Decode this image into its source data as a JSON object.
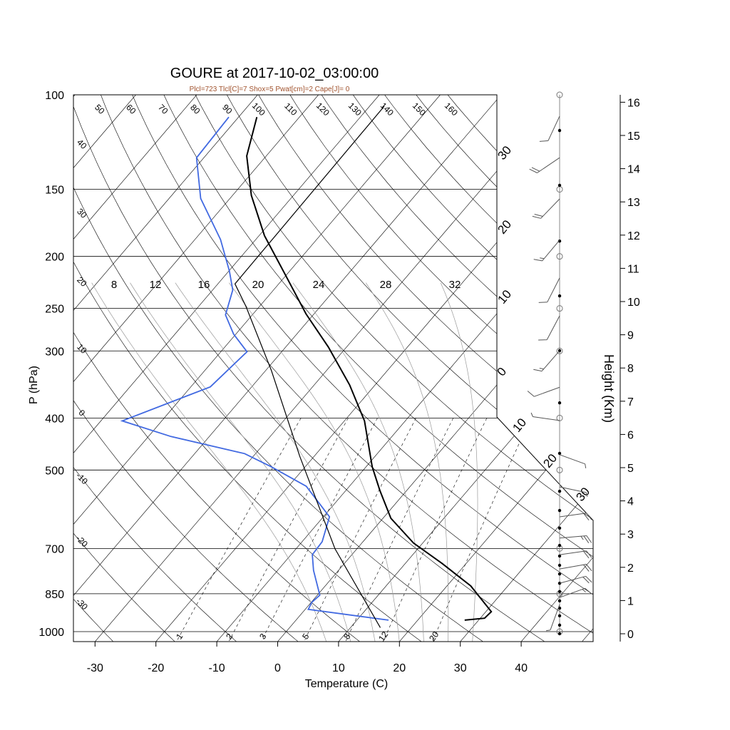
{
  "chart_data": {
    "type": "line",
    "subtype": "skew-T log-P",
    "title": "GOURE at 2017-10-02_03:00:00",
    "subtitle": "Plcl=723 Tlcl[C]=7 Shox=5 Pwat[cm]=2 Cape[J]= 0",
    "xlabel": "Temperature (C)",
    "ylabel": "P (hPa)",
    "y2label": "Height (Km)",
    "xlim": [
      -34,
      51
    ],
    "ylim": [
      1044,
      100
    ],
    "x_ticks": [
      "-30",
      "-20",
      "-10",
      "0",
      "10",
      "20",
      "30",
      "40"
    ],
    "pressure_ticks": [
      "100",
      "150",
      "200",
      "250",
      "300",
      "400",
      "500",
      "700",
      "850",
      "1000"
    ],
    "height_ticks": [
      "0",
      "1",
      "2",
      "3",
      "4",
      "5",
      "6",
      "7",
      "8",
      "9",
      "10",
      "11",
      "12",
      "13",
      "14",
      "15",
      "16"
    ],
    "isotherm_labels": [
      "30",
      "20",
      "10",
      "0",
      "10",
      "20",
      "30"
    ],
    "dry_adiabat_labels_top": [
      "50",
      "60",
      "70",
      "80",
      "90",
      "100",
      "110",
      "120",
      "130",
      "140",
      "150",
      "160"
    ],
    "dry_adiabat_labels_left": [
      "40",
      "30",
      "20",
      "10",
      "0",
      "-10",
      "-20",
      "-30"
    ],
    "moist_adiabat_labels": [
      "8",
      "12",
      "16",
      "20",
      "24",
      "28",
      "32"
    ],
    "mixing_ratio_labels": [
      "1",
      "2",
      "3",
      "5",
      "8",
      "12",
      "20"
    ],
    "colors": {
      "temperature": "#000000",
      "dewpoint": "#4169e1",
      "parcel": "#000000",
      "subtitle": "#a0522d",
      "grid": "#000000",
      "moist": "#9a9a9a"
    },
    "series": [
      {
        "name": "temperature",
        "pressure": [
          952,
          944,
          918,
          822,
          746,
          684,
          615,
          546,
          493,
          405,
          347,
          295,
          256,
          216,
          183,
          154,
          130,
          110
        ],
        "temp": [
          27.7,
          30.7,
          30.9,
          23.9,
          16.0,
          8.5,
          1.3,
          -4.4,
          -9.0,
          -16.7,
          -24.2,
          -33.0,
          -41.3,
          -50.3,
          -59.1,
          -66.9,
          -73.2,
          -77.0
        ]
      },
      {
        "name": "dewpoint",
        "pressure": [
          952,
          909,
          882,
          855,
          769,
          719,
          680,
          611,
          536,
          493,
          466,
          433,
          405,
          350,
          301,
          279,
          257,
          231,
          213,
          186,
          156,
          131,
          110
        ],
        "temp": [
          15.2,
          0.5,
          0.1,
          0.4,
          -4.1,
          -6.5,
          -6.7,
          -9.0,
          -17.1,
          -25.6,
          -31.8,
          -46.3,
          -56.5,
          -46.8,
          -45.7,
          -50.4,
          -54.4,
          -56.7,
          -59.9,
          -65.8,
          -74.8,
          -81.2,
          -81.6
        ]
      },
      {
        "name": "parcel",
        "pressure": [
          983,
          701,
          471,
          326,
          248,
          225,
          105
        ],
        "temp": [
          14.9,
          -3.6,
          -22.4,
          -39.1,
          -52.2,
          -57.2,
          -57.6
        ]
      }
    ],
    "mixing_ratio_lines": [
      1,
      2,
      3,
      5,
      8,
      12,
      20
    ],
    "moist_adiabats": [
      8,
      12,
      16,
      20,
      24,
      28,
      32
    ],
    "dry_adiabats_start": -40,
    "dry_adiabats_end": 160,
    "level_dots_km": [
      15.15,
      13.5,
      11.82,
      10.17,
      8.52,
      6.95,
      5.43,
      4.29,
      3.71,
      3.18,
      2.66,
      2.34,
      2.06,
      1.8,
      1.52,
      1.27,
      0.99,
      0.77,
      0.54,
      0.26,
      0
    ],
    "mandatory_levels_hpa": [
      100,
      150,
      200,
      250,
      300,
      400,
      500,
      700,
      850,
      1000
    ],
    "winds": [
      {
        "km": 15.58,
        "dir": 205,
        "kt": 10
      },
      {
        "km": 14.33,
        "dir": 236,
        "kt": 20
      },
      {
        "km": 13.09,
        "dir": 224,
        "kt": 20
      },
      {
        "km": 11.85,
        "dir": 220,
        "kt": 15
      },
      {
        "km": 10.71,
        "dir": 207,
        "kt": 10
      },
      {
        "km": 9.57,
        "dir": 208,
        "kt": 10
      },
      {
        "km": 8.52,
        "dir": 221,
        "kt": 15
      },
      {
        "km": 7.42,
        "dir": 250,
        "kt": 10
      },
      {
        "km": 6.42,
        "dir": 278,
        "kt": 5
      },
      {
        "km": 5.39,
        "dir": 110,
        "kt": 5
      },
      {
        "km": 4.42,
        "dir": 102,
        "kt": 5
      },
      {
        "km": 3.52,
        "dir": 82,
        "kt": 20
      },
      {
        "km": 2.88,
        "dir": 85,
        "kt": 25
      },
      {
        "km": 2.38,
        "dir": 82,
        "kt": 20
      },
      {
        "km": 1.95,
        "dir": 80,
        "kt": 20
      },
      {
        "km": 1.52,
        "dir": 75,
        "kt": 20
      },
      {
        "km": 1.09,
        "dir": 70,
        "kt": 15
      },
      {
        "km": 0.88,
        "dir": 200,
        "kt": 5
      }
    ]
  }
}
